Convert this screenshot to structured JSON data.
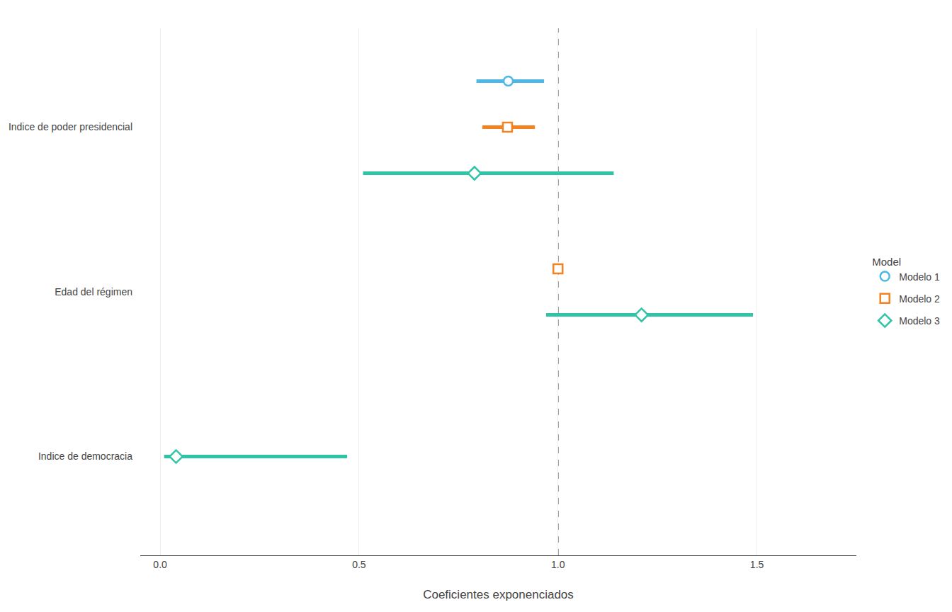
{
  "chart_data": {
    "type": "forest",
    "xlabel": "Coeficientes exponenciados",
    "legend_title": "Model",
    "categories": [
      "Indice de poder presidencial",
      "Edad del régimen",
      "Indice de democracia"
    ],
    "series": [
      {
        "name": "Modelo 1",
        "color": "#4db8e8",
        "marker": "circle",
        "values": [
          0.875,
          null,
          null
        ],
        "ci_low": [
          0.795,
          null,
          null
        ],
        "ci_high": [
          0.965,
          null,
          null
        ]
      },
      {
        "name": "Modelo 2",
        "color": "#f58220",
        "marker": "square",
        "values": [
          0.873,
          1.0,
          null
        ],
        "ci_low": [
          0.81,
          0.99,
          null
        ],
        "ci_high": [
          0.942,
          1.01,
          null
        ]
      },
      {
        "name": "Modelo 3",
        "color": "#2ec4a5",
        "marker": "diamond",
        "values": [
          0.79,
          1.21,
          0.04
        ],
        "ci_low": [
          0.51,
          0.97,
          0.01
        ],
        "ci_high": [
          1.14,
          1.49,
          0.47
        ]
      }
    ],
    "reference_line": 1.0,
    "xlim": [
      -0.05,
      1.75
    ],
    "xticks": [
      {
        "value": 0.0,
        "label": "0.0"
      },
      0.5,
      {
        "value": 1.0,
        "label": "1.0"
      },
      1.5
    ],
    "grid": true,
    "legend": "right"
  }
}
